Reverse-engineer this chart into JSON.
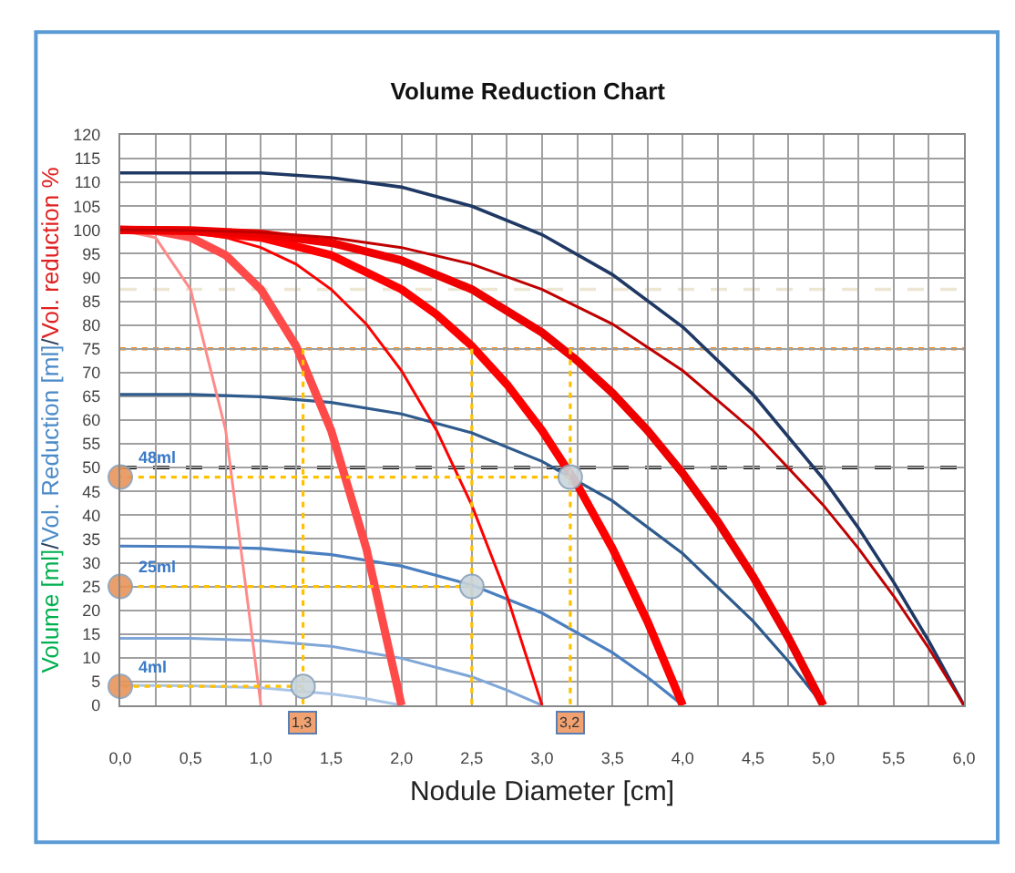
{
  "chart_data": {
    "type": "line",
    "title": "Volume Reduction Chart",
    "xlabel": "Nodule Diameter [cm]",
    "ylabel": "Volume [ml]/Vol. Reduction [ml]/Vol. reduction %",
    "xlim": [
      0,
      6
    ],
    "ylim": [
      0,
      120
    ],
    "xticks": [
      {
        "value": 0,
        "label": "0,0"
      },
      {
        "value": 0.25,
        "label": null
      },
      {
        "value": 0.5,
        "label": "0,5"
      },
      {
        "value": 0.75,
        "label": null
      },
      {
        "value": 1,
        "label": "1,0"
      },
      {
        "value": 1.25,
        "label": null
      },
      {
        "value": 1.5,
        "label": "1,5"
      },
      {
        "value": 1.75,
        "label": null
      },
      {
        "value": 2,
        "label": "2,0"
      },
      {
        "value": 2.25,
        "label": null
      },
      {
        "value": 2.5,
        "label": "2,5"
      },
      {
        "value": 2.75,
        "label": null
      },
      {
        "value": 3,
        "label": "3,0"
      },
      {
        "value": 3.25,
        "label": null
      },
      {
        "value": 3.5,
        "label": "3,5"
      },
      {
        "value": 3.75,
        "label": null
      },
      {
        "value": 4,
        "label": "4,0"
      },
      {
        "value": 4.25,
        "label": null
      },
      {
        "value": 4.5,
        "label": "4,5"
      },
      {
        "value": 4.75,
        "label": null
      },
      {
        "value": 5,
        "label": "5,0"
      },
      {
        "value": 5.25,
        "label": null
      },
      {
        "value": 5.5,
        "label": "5,5"
      },
      {
        "value": 5.75,
        "label": null
      },
      {
        "value": 6,
        "label": "6,0"
      }
    ],
    "yticks": [
      0,
      5,
      10,
      15,
      20,
      25,
      30,
      35,
      40,
      45,
      50,
      55,
      60,
      65,
      70,
      75,
      80,
      85,
      90,
      95,
      100,
      105,
      110,
      115,
      120
    ],
    "grid": true,
    "line_style": "solid",
    "marker": "none",
    "series": [
      {
        "color": "#1f3864",
        "x": [
          0,
          0.5,
          1,
          1.5,
          2,
          2.5,
          3,
          3.5,
          4,
          4.5,
          5,
          5.25,
          5.5,
          5.75,
          6
        ],
        "values": [
          112,
          112,
          112,
          111,
          109,
          105,
          99,
          90.6,
          79.6,
          65.4,
          47.6,
          37.3,
          25.9,
          13.5,
          0
        ]
      },
      {
        "color": "#2e5a8c",
        "x": [
          0,
          0.5,
          1,
          1.5,
          2,
          2.5,
          3,
          3.5,
          4,
          4.5,
          4.75,
          5
        ],
        "values": [
          65.4,
          65.4,
          64.9,
          63.7,
          61.3,
          57.3,
          51.3,
          43.0,
          31.9,
          17.7,
          9.3,
          0
        ]
      },
      {
        "color": "#4a7fc0",
        "x": [
          0,
          0.5,
          1,
          1.5,
          2,
          2.5,
          3,
          3.5,
          3.75,
          4
        ],
        "values": [
          33.5,
          33.4,
          33.0,
          31.7,
          29.3,
          25.3,
          19.4,
          11.1,
          5.9,
          0
        ]
      },
      {
        "color": "#7ea6d8",
        "x": [
          0,
          0.5,
          1,
          1.5,
          2,
          2.5,
          2.75,
          3
        ],
        "values": [
          14.1,
          14.1,
          13.6,
          12.4,
          9.9,
          6.0,
          3.2,
          0
        ]
      },
      {
        "color": "#a9c4e6",
        "x": [
          0,
          0.5,
          1,
          1.5,
          1.75,
          2
        ],
        "values": [
          4.2,
          4.1,
          3.7,
          2.4,
          1.4,
          0
        ]
      },
      {
        "color": "#ff8a8a",
        "x": [
          0,
          0.25,
          0.5,
          0.75,
          1
        ],
        "values": [
          100,
          98.4,
          87.5,
          57.8,
          0
        ]
      },
      {
        "color": "#ff4a4a",
        "x": [
          0,
          0.25,
          0.5,
          0.75,
          1,
          1.25,
          1.5,
          1.75,
          2
        ],
        "values": [
          100,
          99.8,
          98.4,
          94.7,
          87.5,
          75.6,
          57.8,
          33.0,
          0
        ]
      },
      {
        "color": "#ff0000",
        "x": [
          0,
          0.25,
          0.5,
          0.75,
          1,
          1.25,
          1.5,
          1.75,
          2,
          2.25,
          2.5,
          2.75,
          3
        ],
        "values": [
          100,
          99.9,
          99.5,
          98.4,
          96.3,
          92.8,
          87.5,
          80.2,
          70.4,
          57.8,
          42.1,
          23.0,
          0
        ]
      },
      {
        "color": "#ff0000",
        "x": [
          0,
          0.5,
          1,
          1.5,
          2,
          2.25,
          2.5,
          2.75,
          3,
          3.25,
          3.5,
          3.75,
          4
        ],
        "values": [
          100,
          99.8,
          98.4,
          94.7,
          87.5,
          82.2,
          75.6,
          67.5,
          57.8,
          46.4,
          33.0,
          17.6,
          0
        ]
      },
      {
        "color": "#ee0000",
        "x": [
          0,
          0.5,
          1,
          1.5,
          2,
          2.5,
          3,
          3.25,
          3.5,
          3.75,
          4,
          4.25,
          4.5,
          4.75,
          5
        ],
        "values": [
          100,
          99.9,
          99.2,
          97.3,
          93.6,
          87.5,
          78.4,
          72.5,
          65.7,
          57.8,
          48.8,
          38.6,
          27.1,
          14.3,
          0
        ]
      },
      {
        "color": "#c00000",
        "x": [
          0,
          0.5,
          1,
          1.5,
          2,
          2.5,
          3,
          3.5,
          4,
          4.5,
          5,
          5.25,
          5.5,
          5.75,
          6
        ],
        "values": [
          100,
          99.9,
          99.5,
          98.4,
          96.3,
          92.8,
          87.5,
          80.2,
          70.4,
          57.8,
          42.1,
          33.0,
          23.0,
          12.0,
          0
        ]
      },
      {
        "color": "#ffc000",
        "line_style": "dotted",
        "x": [
          1.3,
          1.3
        ],
        "values": [
          75,
          0
        ]
      },
      {
        "color": "#ffc000",
        "line_style": "dotted",
        "x": [
          1.3,
          0
        ],
        "values": [
          4,
          4
        ]
      },
      {
        "color": "#ffc000",
        "line_style": "dotted",
        "x": [
          2.5,
          2.5
        ],
        "values": [
          75,
          0
        ]
      },
      {
        "color": "#ffc000",
        "line_style": "dotted",
        "x": [
          2.5,
          0
        ],
        "values": [
          25,
          25
        ]
      },
      {
        "color": "#ffc000",
        "line_style": "dotted",
        "x": [
          3.2,
          3.2
        ],
        "values": [
          75,
          0
        ]
      },
      {
        "color": "#ffc000",
        "line_style": "dotted",
        "x": [
          3.2,
          0
        ],
        "values": [
          48,
          48
        ]
      },
      {
        "type": "scatter",
        "marker": "circle",
        "color": "#c8d4dc",
        "x": [
          1.3,
          2.5,
          3.2
        ],
        "values": [
          4,
          25,
          48
        ]
      },
      {
        "type": "scatter",
        "marker": "circle",
        "color": "#e8945a",
        "x": [
          0,
          0,
          0
        ],
        "values": [
          48,
          25,
          4
        ]
      }
    ],
    "ref_lines": [
      {
        "axis": "y",
        "value": 87.5,
        "color": "#ece6d2",
        "line_style": "dashed"
      },
      {
        "axis": "y",
        "value": 75,
        "color": "#ff8c1a",
        "line_style": "dotted"
      },
      {
        "axis": "y",
        "value": 50,
        "color": "#000000",
        "line_style": "dashed"
      }
    ],
    "annotations": [
      {
        "text": "48ml",
        "x": 0,
        "y": 48
      },
      {
        "text": "25ml",
        "x": 0,
        "y": 25
      },
      {
        "text": "4ml",
        "x": 0,
        "y": 4
      },
      {
        "text": "1,3",
        "x": 1.3,
        "y": 0
      },
      {
        "text": "3,2",
        "x": 3.2,
        "y": 0
      }
    ]
  }
}
